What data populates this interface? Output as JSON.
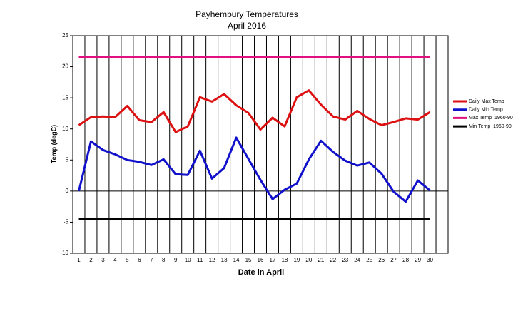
{
  "chart_data": {
    "type": "line",
    "title": "Payhembury Temperatures",
    "subtitle": "April 2016",
    "x_label": "Date in April",
    "y_label": "Temp (degC)",
    "categories": [
      "1",
      "2",
      "3",
      "4",
      "5",
      "6",
      "7",
      "8",
      "9",
      "10",
      "11",
      "12",
      "13",
      "14",
      "15",
      "16",
      "17",
      "18",
      "19",
      "20",
      "21",
      "22",
      "23",
      "24",
      "25",
      "26",
      "27",
      "28",
      "29",
      "30"
    ],
    "series": [
      {
        "name": "Daily Max Temp",
        "color": "#dd1111",
        "values": [
          10.6,
          11.9,
          12.0,
          11.9,
          13.7,
          11.4,
          11.1,
          12.7,
          9.5,
          10.4,
          15.1,
          14.4,
          15.6,
          13.8,
          12.6,
          9.9,
          11.8,
          10.4,
          15.1,
          16.2,
          13.9,
          12.0,
          11.5,
          12.9,
          11.6,
          10.6,
          11.1,
          11.7,
          11.5,
          12.7
        ]
      },
      {
        "name": "Daily Min Temp",
        "color": "#1111cc",
        "values": [
          0,
          8.0,
          6.6,
          5.9,
          5.0,
          4.7,
          4.2,
          5.1,
          2.7,
          2.6,
          6.5,
          2.0,
          3.7,
          8.6,
          5.2,
          1.8,
          -1.3,
          0.2,
          1.2,
          5.1,
          8.1,
          6.3,
          4.9,
          4.1,
          4.6,
          2.8,
          -0.1,
          -1.7,
          1.7,
          0.1
        ]
      },
      {
        "name": "Max Temp  1960-90",
        "color": "#e0117f",
        "values": [
          21.5,
          21.5,
          21.5,
          21.5,
          21.5,
          21.5,
          21.5,
          21.5,
          21.5,
          21.5,
          21.5,
          21.5,
          21.5,
          21.5,
          21.5,
          21.5,
          21.5,
          21.5,
          21.5,
          21.5,
          21.5,
          21.5,
          21.5,
          21.5,
          21.5,
          21.5,
          21.5,
          21.5,
          21.5,
          21.5
        ]
      },
      {
        "name": "Min Temp  1960-90",
        "color": "#000000",
        "values": [
          -4.5,
          -4.5,
          -4.5,
          -4.5,
          -4.5,
          -4.5,
          -4.5,
          -4.5,
          -4.5,
          -4.5,
          -4.5,
          -4.5,
          -4.5,
          -4.5,
          -4.5,
          -4.5,
          -4.5,
          -4.5,
          -4.5,
          -4.5,
          -4.5,
          -4.5,
          -4.5,
          -4.5,
          -4.5,
          -4.5,
          -4.5,
          -4.5,
          -4.5,
          -4.5
        ]
      }
    ],
    "ylim": [
      -10,
      25
    ],
    "yticks": [
      -10,
      -5,
      0,
      5,
      10,
      15,
      20,
      25
    ],
    "grid": true
  }
}
